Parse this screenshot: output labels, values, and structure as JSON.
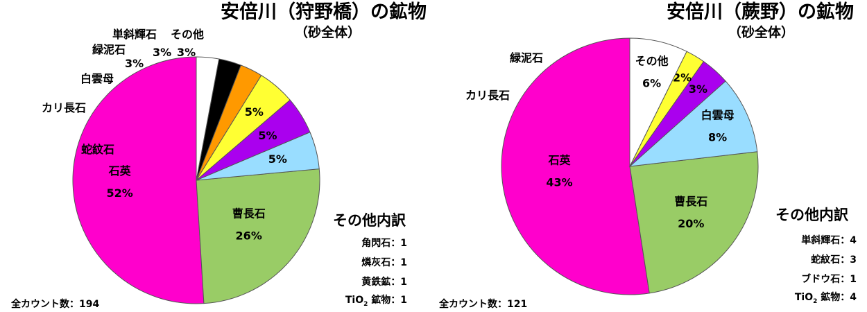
{
  "chart_data": [
    {
      "type": "pie",
      "title": "安倍川（狩野橋）の鉱物",
      "subtitle": "（砂全体）",
      "slices": [
        {
          "label": "石英",
          "value": 52,
          "value_label": "52%",
          "color": "#ff00cc"
        },
        {
          "label": "曹長石",
          "value": 26,
          "value_label": "26%",
          "color": "#99cc66"
        },
        {
          "label": "蛇紋石",
          "value": 5,
          "value_label": "5%",
          "color": "#99ddff"
        },
        {
          "label": "カリ長石",
          "value": 5,
          "value_label": "5%",
          "color": "#aa00ee"
        },
        {
          "label": "白雲母",
          "value": 5,
          "value_label": "5%",
          "color": "#ffff33"
        },
        {
          "label": "緑泥石",
          "value": 3,
          "value_label": "3%",
          "color": "#ff9900"
        },
        {
          "label": "単斜輝石",
          "value": 3,
          "value_label": "3%",
          "color": "#000000"
        },
        {
          "label": "その他",
          "value": 3,
          "value_label": "3%",
          "color": "#ffffff"
        }
      ],
      "other_title": "その他内訳",
      "other_items": [
        "角閃石：1",
        "燐灰石：1",
        "黄鉄鉱：1",
        "TiO2 鉱物：1"
      ],
      "total_label": "全カウント数：194"
    },
    {
      "type": "pie",
      "title": "安倍川（蕨野）の鉱物",
      "subtitle": "（砂全体）",
      "slices": [
        {
          "label": "石英",
          "value": 43,
          "value_label": "43%",
          "color": "#ff00cc"
        },
        {
          "label": "曹長石",
          "value": 20,
          "value_label": "20%",
          "color": "#99cc66"
        },
        {
          "label": "白雲母",
          "value": 8,
          "value_label": "8%",
          "color": "#99ddff"
        },
        {
          "label": "カリ長石",
          "value": 3,
          "value_label": "3%",
          "color": "#aa00ee"
        },
        {
          "label": "緑泥石",
          "value": 2,
          "value_label": "2%",
          "color": "#ffff33"
        },
        {
          "label": "その他",
          "value": 6,
          "value_label": "6%",
          "color": "#ffffff"
        }
      ],
      "other_title": "その他内訳",
      "other_items": [
        "単斜輝石：4",
        "蛇紋石：3",
        "ブドウ石：1",
        "TiO2 鉱物：4"
      ],
      "total_label": "全カウント数：121"
    }
  ]
}
